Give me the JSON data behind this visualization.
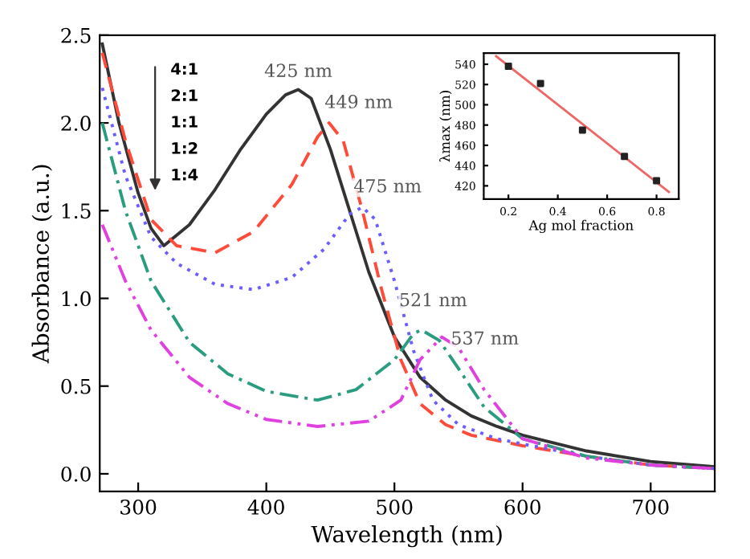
{
  "chart_data": [
    {
      "type": "line",
      "xlabel": "Wavelength (nm)",
      "ylabel": "Absorbance (a.u.)",
      "xlim": [
        270,
        750
      ],
      "ylim": [
        -0.1,
        2.5
      ],
      "xticks": [
        300,
        400,
        500,
        600,
        700
      ],
      "yticks": [
        {
          "value": 0,
          "label": "0.0"
        },
        0.5,
        {
          "value": 1,
          "label": "1.0"
        },
        1.5,
        {
          "value": 2,
          "label": "2.0"
        },
        2.5
      ],
      "grid": false,
      "legend": false,
      "series": [
        {
          "color": "#333333",
          "line_style": "solid",
          "x": [
            272,
            285,
            300,
            310,
            320,
            340,
            360,
            380,
            400,
            415,
            425,
            435,
            450,
            465,
            480,
            500,
            520,
            540,
            560,
            580,
            600,
            650,
            700,
            750
          ],
          "values": [
            2.45,
            2.0,
            1.6,
            1.4,
            1.3,
            1.42,
            1.62,
            1.85,
            2.05,
            2.16,
            2.19,
            2.14,
            1.85,
            1.5,
            1.15,
            0.78,
            0.55,
            0.42,
            0.33,
            0.27,
            0.22,
            0.13,
            0.07,
            0.04
          ]
        },
        {
          "color": "#ff4b3a",
          "line_style": "dashed",
          "x": [
            272,
            290,
            310,
            330,
            360,
            390,
            420,
            440,
            449,
            460,
            475,
            490,
            505,
            520,
            540,
            560,
            600,
            650,
            700,
            750
          ],
          "values": [
            2.4,
            1.9,
            1.45,
            1.3,
            1.26,
            1.38,
            1.65,
            1.92,
            2.0,
            1.9,
            1.5,
            1.05,
            0.65,
            0.4,
            0.28,
            0.22,
            0.16,
            0.1,
            0.05,
            0.03
          ]
        },
        {
          "color": "#6a5cff",
          "line_style": "dotted",
          "x": [
            272,
            290,
            310,
            330,
            360,
            390,
            420,
            445,
            465,
            475,
            485,
            500,
            515,
            530,
            550,
            580,
            600,
            650,
            700,
            750
          ],
          "values": [
            2.2,
            1.7,
            1.35,
            1.2,
            1.08,
            1.05,
            1.12,
            1.28,
            1.48,
            1.52,
            1.45,
            1.1,
            0.7,
            0.42,
            0.28,
            0.2,
            0.17,
            0.1,
            0.05,
            0.03
          ]
        },
        {
          "color": "#2a9d80",
          "line_style": "dashdot",
          "x": [
            272,
            290,
            310,
            340,
            370,
            400,
            440,
            470,
            500,
            515,
            521,
            535,
            550,
            570,
            600,
            650,
            700,
            750
          ],
          "values": [
            2.0,
            1.5,
            1.1,
            0.75,
            0.57,
            0.47,
            0.42,
            0.48,
            0.65,
            0.8,
            0.82,
            0.76,
            0.6,
            0.38,
            0.2,
            0.1,
            0.05,
            0.03
          ]
        },
        {
          "color": "#e040e0",
          "line_style": "dashdotdot",
          "x": [
            272,
            290,
            310,
            340,
            370,
            400,
            440,
            480,
            505,
            520,
            537,
            550,
            570,
            600,
            650,
            700,
            750
          ],
          "values": [
            1.42,
            1.1,
            0.82,
            0.55,
            0.4,
            0.31,
            0.27,
            0.3,
            0.42,
            0.65,
            0.78,
            0.72,
            0.48,
            0.2,
            0.09,
            0.05,
            0.03
          ]
        }
      ],
      "annotations": [
        {
          "text": "425 nm",
          "x": 425,
          "y": 2.19
        },
        {
          "text": "449 nm",
          "x": 449,
          "y": 2.0
        },
        {
          "text": "475 nm",
          "x": 475,
          "y": 1.52
        },
        {
          "text": "521 nm",
          "x": 521,
          "y": 0.82
        },
        {
          "text": "537 nm",
          "x": 537,
          "y": 0.78
        },
        "4:1",
        "2:1",
        "1:1",
        "1:2",
        "1:4"
      ]
    },
    {
      "type": "scatter",
      "xlabel": "Ag mol fraction",
      "ylabel": "λmax (nm)",
      "xlim": [
        0.1,
        0.89
      ],
      "ylim": [
        407,
        551
      ],
      "xticks": [
        0.2,
        0.4,
        0.6,
        0.8
      ],
      "yticks": [
        420,
        440,
        460,
        480,
        500,
        520,
        540
      ],
      "grid": false,
      "legend": false,
      "series": [
        {
          "type": "scatter",
          "color": "#222222",
          "marker": "square",
          "x": [
            0.2,
            0.33,
            0.5,
            0.67,
            0.8
          ],
          "values": [
            538,
            521,
            475,
            449,
            425
          ]
        },
        {
          "type": "line",
          "color": "#ee6666",
          "x": [
            0.15,
            0.85
          ],
          "values": [
            548,
            414
          ]
        }
      ]
    }
  ]
}
